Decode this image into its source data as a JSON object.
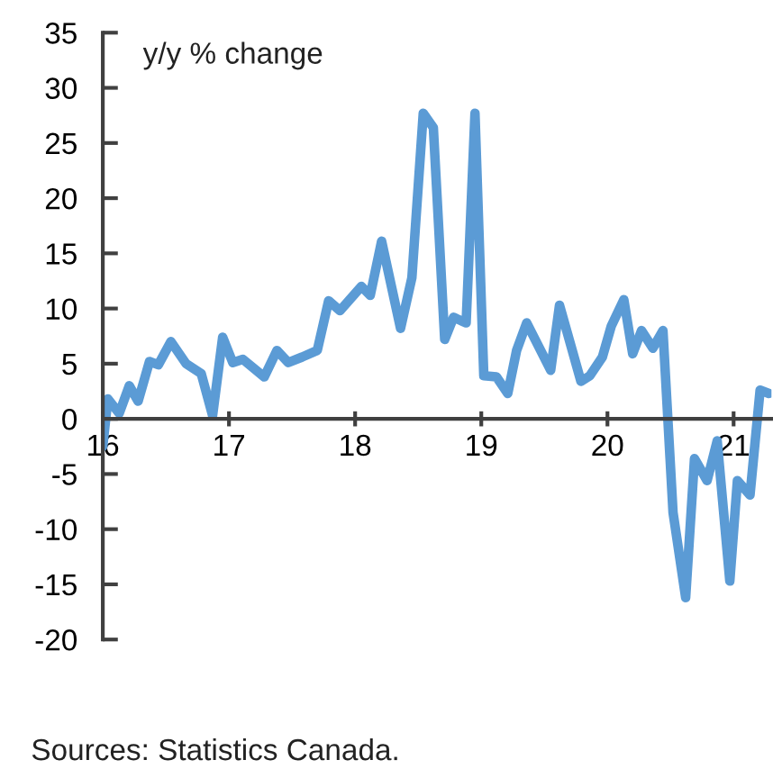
{
  "chart_data": {
    "type": "line",
    "ylabel": "y/y % change",
    "annotations": [
      "Sources: Statistics Canada."
    ],
    "series": [
      {
        "color": "#5b9bd5",
        "x": [
          16.0,
          16.04,
          16.13,
          16.21,
          16.28,
          16.37,
          16.44,
          16.54,
          16.66,
          16.78,
          16.87,
          16.95,
          17.03,
          17.11,
          17.28,
          17.38,
          17.47,
          17.58,
          17.7,
          17.79,
          17.88,
          18.05,
          18.12,
          18.21,
          18.36,
          18.45,
          18.54,
          18.62,
          18.71,
          18.78,
          18.88,
          18.95,
          19.02,
          19.12,
          19.21,
          19.28,
          19.36,
          19.55,
          19.62,
          19.79,
          19.86,
          19.96,
          20.03,
          20.13,
          20.2,
          20.27,
          20.36,
          20.44,
          20.52,
          20.62,
          20.69,
          20.79,
          20.87,
          20.97,
          21.03,
          21.13,
          21.21,
          21.28
        ],
        "values": [
          -2.5,
          1.8,
          0.5,
          3,
          1.6,
          5.2,
          4.9,
          7,
          5,
          4.1,
          0.3,
          7.4,
          5.1,
          5.4,
          3.8,
          6.2,
          5.1,
          5.6,
          6.2,
          10.7,
          9.8,
          12,
          11.2,
          16.1,
          8.2,
          12.8,
          27.7,
          26.4,
          7.2,
          9.2,
          8.7,
          27.7,
          3.9,
          3.8,
          2.3,
          6.2,
          8.7,
          4.4,
          10.3,
          3.4,
          3.9,
          5.6,
          8.4,
          10.8,
          5.9,
          8,
          6.4,
          8,
          -8.5,
          -16.2,
          -3.6,
          -5.6,
          -2,
          -14.7,
          -5.6,
          -6.9,
          2.6,
          2.3
        ]
      }
    ],
    "xlim": [
      16,
      21.3
    ],
    "xticks": [
      16,
      17,
      18,
      19,
      20,
      21
    ],
    "ylim": [
      -20,
      35
    ],
    "yticks": [
      -20,
      -15,
      -10,
      -5,
      0,
      5,
      10,
      15,
      20,
      25,
      30,
      35
    ],
    "grid": false,
    "legend": false,
    "marker": "none",
    "line_style": "solid"
  }
}
